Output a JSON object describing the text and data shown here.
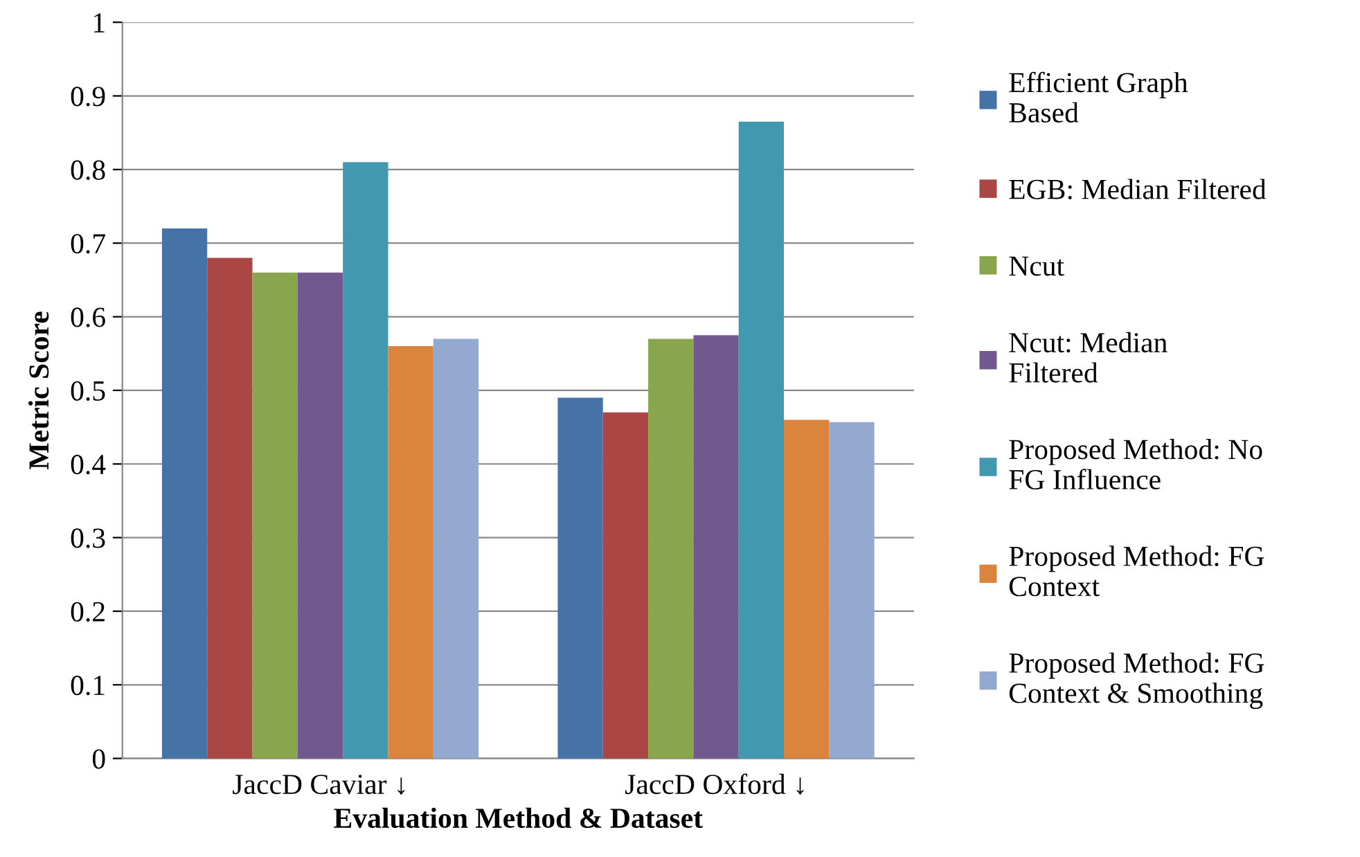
{
  "chart_data": {
    "type": "bar",
    "xlabel": "Evaluation Method & Dataset",
    "ylabel": "Metric Score",
    "categories": [
      "JaccD Caviar ↓",
      "JaccD Oxford ↓"
    ],
    "series": [
      {
        "name": "Efficient Graph Based",
        "color": "#4572a7",
        "values": [
          0.72,
          0.49
        ]
      },
      {
        "name": "EGB: Median Filtered",
        "color": "#aa4643",
        "values": [
          0.68,
          0.47
        ]
      },
      {
        "name": "Ncut",
        "color": "#89a54e",
        "values": [
          0.66,
          0.57
        ]
      },
      {
        "name": "Ncut: Median Filtered",
        "color": "#71588f",
        "values": [
          0.66,
          0.575
        ]
      },
      {
        "name": "Proposed Method: No FG Influence",
        "color": "#4198af",
        "values": [
          0.81,
          0.865
        ]
      },
      {
        "name": "Proposed Method: FG Context",
        "color": "#db843d",
        "values": [
          0.56,
          0.46
        ]
      },
      {
        "name": "Proposed Method: FG Context & Smoothing",
        "color": "#93a9cf",
        "values": [
          0.57,
          0.457
        ]
      }
    ],
    "ylim": [
      0,
      1
    ],
    "yticks": [
      0,
      0.1,
      0.2,
      0.3,
      0.4,
      0.5,
      0.6,
      0.7,
      0.8,
      0.9,
      1
    ],
    "grid": "y",
    "legend": "right"
  }
}
